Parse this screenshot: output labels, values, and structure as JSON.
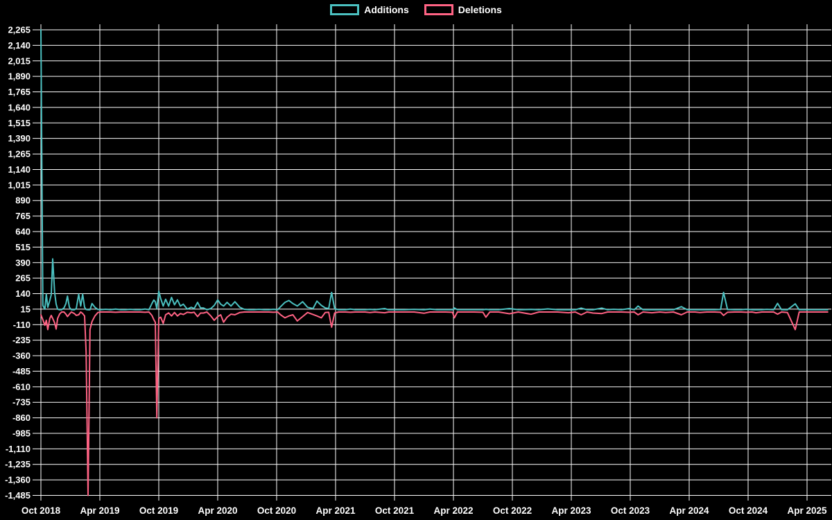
{
  "legend": {
    "position": "top",
    "items": [
      {
        "label": "Additions",
        "color": "#4bc0c0"
      },
      {
        "label": "Deletions",
        "color": "#ff6384"
      }
    ]
  },
  "chart_data": {
    "type": "line",
    "title": "",
    "xlabel": "",
    "ylabel": "",
    "background": "#000000",
    "grid": true,
    "grid_color": "#ffffff",
    "text_color": "#ffffff",
    "legend_position": "top",
    "ylim": [
      -1485,
      2265
    ],
    "y_tick_step": 125,
    "y_tick_labels": [
      "2,265",
      "2,140",
      "2,015",
      "1,890",
      "1,765",
      "1,640",
      "1,515",
      "1,390",
      "1,265",
      "1,140",
      "1,015",
      "890",
      "765",
      "640",
      "515",
      "390",
      "265",
      "140",
      "15",
      "-110",
      "-235",
      "-360",
      "-485",
      "-610",
      "-735",
      "-860",
      "-985",
      "-1,110",
      "-1,235",
      "-1,360",
      "-1,485"
    ],
    "x_unit": "months since Oct 2018",
    "xlim_months": [
      0,
      80.5
    ],
    "x_tick_months": [
      0,
      6,
      12,
      18,
      24,
      30,
      36,
      42,
      48,
      54,
      60,
      66,
      72,
      78
    ],
    "x_tick_labels": [
      "Oct 2018",
      "Apr 2019",
      "Oct 2019",
      "Apr 2020",
      "Oct 2020",
      "Apr 2021",
      "Oct 2021",
      "Apr 2022",
      "Oct 2022",
      "Apr 2023",
      "Oct 2023",
      "Apr 2024",
      "Oct 2024",
      "Apr 2025"
    ],
    "x": [
      0,
      0.2,
      0.4,
      0.55,
      0.7,
      0.9,
      1.05,
      1.2,
      1.4,
      1.55,
      1.7,
      1.9,
      2.1,
      2.35,
      2.55,
      2.7,
      2.9,
      3.1,
      3.4,
      3.6,
      3.85,
      4.05,
      4.25,
      4.45,
      4.6,
      4.8,
      5.0,
      5.2,
      5.5,
      5.8,
      6.1,
      6.6,
      7.1,
      7.6,
      8.1,
      8.6,
      9.1,
      9.6,
      10.1,
      10.6,
      11.0,
      11.3,
      11.5,
      11.65,
      11.8,
      12.0,
      12.2,
      12.45,
      12.7,
      13.0,
      13.3,
      13.6,
      13.9,
      14.2,
      14.5,
      14.9,
      15.3,
      15.6,
      15.95,
      16.25,
      16.55,
      16.9,
      17.3,
      17.65,
      18.0,
      18.3,
      18.6,
      18.95,
      19.35,
      19.75,
      20.25,
      20.7,
      21.2,
      21.7,
      22.2,
      22.7,
      23.2,
      23.7,
      24.1,
      24.4,
      24.85,
      25.25,
      25.65,
      26.1,
      26.65,
      27.15,
      27.7,
      28.1,
      28.55,
      28.95,
      29.3,
      29.6,
      29.9,
      30.3,
      31.0,
      31.5,
      32.0,
      33.0,
      33.5,
      34.0,
      35.0,
      35.4,
      36.2,
      37.0,
      38.0,
      39.0,
      39.6,
      40.3,
      41.2,
      41.9,
      42.1,
      42.4,
      43.2,
      44.1,
      45.0,
      45.3,
      45.7,
      46.6,
      47.7,
      48.6,
      49.9,
      50.7,
      51.6,
      52.6,
      53.7,
      54.4,
      55.0,
      55.6,
      56.2,
      57.1,
      57.7,
      58.3,
      59.1,
      59.9,
      60.4,
      60.8,
      61.3,
      62.2,
      63.0,
      63.6,
      64.4,
      65.2,
      65.8,
      66.6,
      67.1,
      67.8,
      68.6,
      69.2,
      69.5,
      69.9,
      70.6,
      71.3,
      71.8,
      72.4,
      72.8,
      73.4,
      73.9,
      74.6,
      75.0,
      75.4,
      76.0,
      76.8,
      77.2,
      78.0,
      79.1,
      80.1
    ],
    "series": [
      {
        "name": "Additions",
        "color": "#4bc0c0",
        "values": [
          2265,
          45,
          15,
          135,
          30,
          85,
          130,
          420,
          150,
          55,
          15,
          10,
          10,
          25,
          60,
          120,
          30,
          10,
          10,
          20,
          135,
          40,
          135,
          30,
          12,
          10,
          10,
          60,
          30,
          12,
          10,
          14,
          10,
          16,
          10,
          10,
          13,
          10,
          10,
          16,
          10,
          60,
          88,
          75,
          20,
          160,
          100,
          40,
          95,
          40,
          110,
          50,
          90,
          40,
          55,
          15,
          30,
          20,
          70,
          25,
          25,
          10,
          20,
          45,
          90,
          55,
          40,
          70,
          40,
          75,
          30,
          14,
          10,
          10,
          13,
          10,
          10,
          14,
          10,
          35,
          70,
          85,
          60,
          40,
          75,
          30,
          20,
          80,
          45,
          25,
          20,
          150,
          20,
          10,
          10,
          16,
          10,
          10,
          13,
          10,
          20,
          10,
          10,
          10,
          13,
          10,
          16,
          10,
          10,
          10,
          25,
          10,
          10,
          10,
          10,
          14,
          10,
          10,
          20,
          10,
          13,
          10,
          17,
          10,
          10,
          10,
          24,
          10,
          10,
          24,
          10,
          14,
          10,
          20,
          10,
          40,
          10,
          10,
          10,
          10,
          10,
          35,
          10,
          10,
          10,
          10,
          10,
          12,
          150,
          12,
          10,
          10,
          14,
          10,
          10,
          10,
          13,
          10,
          62,
          10,
          10,
          58,
          10,
          10,
          10,
          10
        ]
      },
      {
        "name": "Deletions",
        "color": "#ff6384",
        "values": [
          -30,
          -70,
          -115,
          -75,
          -150,
          -60,
          -35,
          -60,
          -95,
          -145,
          -60,
          -25,
          -8,
          -8,
          -25,
          -45,
          -25,
          -8,
          -20,
          -35,
          -30,
          -8,
          -20,
          -40,
          -330,
          -1485,
          -150,
          -85,
          -40,
          -12,
          -8,
          -8,
          -8,
          -10,
          -8,
          -8,
          -8,
          -8,
          -8,
          -10,
          -8,
          -35,
          -70,
          -90,
          -860,
          -60,
          -50,
          -100,
          -30,
          -15,
          -40,
          -12,
          -40,
          -20,
          -28,
          -10,
          -14,
          -10,
          -45,
          -16,
          -16,
          -8,
          -40,
          -75,
          -45,
          -30,
          -90,
          -50,
          -25,
          -30,
          -12,
          -8,
          -8,
          -8,
          -8,
          -8,
          -8,
          -10,
          -8,
          -30,
          -55,
          -40,
          -30,
          -80,
          -45,
          -12,
          -28,
          -40,
          -55,
          -12,
          -10,
          -130,
          -16,
          -8,
          -8,
          -10,
          -8,
          -8,
          -12,
          -8,
          -14,
          -8,
          -8,
          -8,
          -8,
          -18,
          -8,
          -8,
          -8,
          -10,
          -55,
          -8,
          -8,
          -8,
          -10,
          -50,
          -8,
          -8,
          -22,
          -8,
          -26,
          -8,
          -8,
          -8,
          -14,
          -8,
          -30,
          -8,
          -16,
          -20,
          -8,
          -8,
          -8,
          -10,
          -8,
          -30,
          -8,
          -14,
          -8,
          -12,
          -8,
          -30,
          -8,
          -8,
          -12,
          -8,
          -8,
          -10,
          -35,
          -10,
          -8,
          -8,
          -10,
          -8,
          -14,
          -8,
          -8,
          -8,
          -25,
          -8,
          -12,
          -150,
          -8,
          -8,
          -8,
          -8
        ]
      }
    ]
  }
}
